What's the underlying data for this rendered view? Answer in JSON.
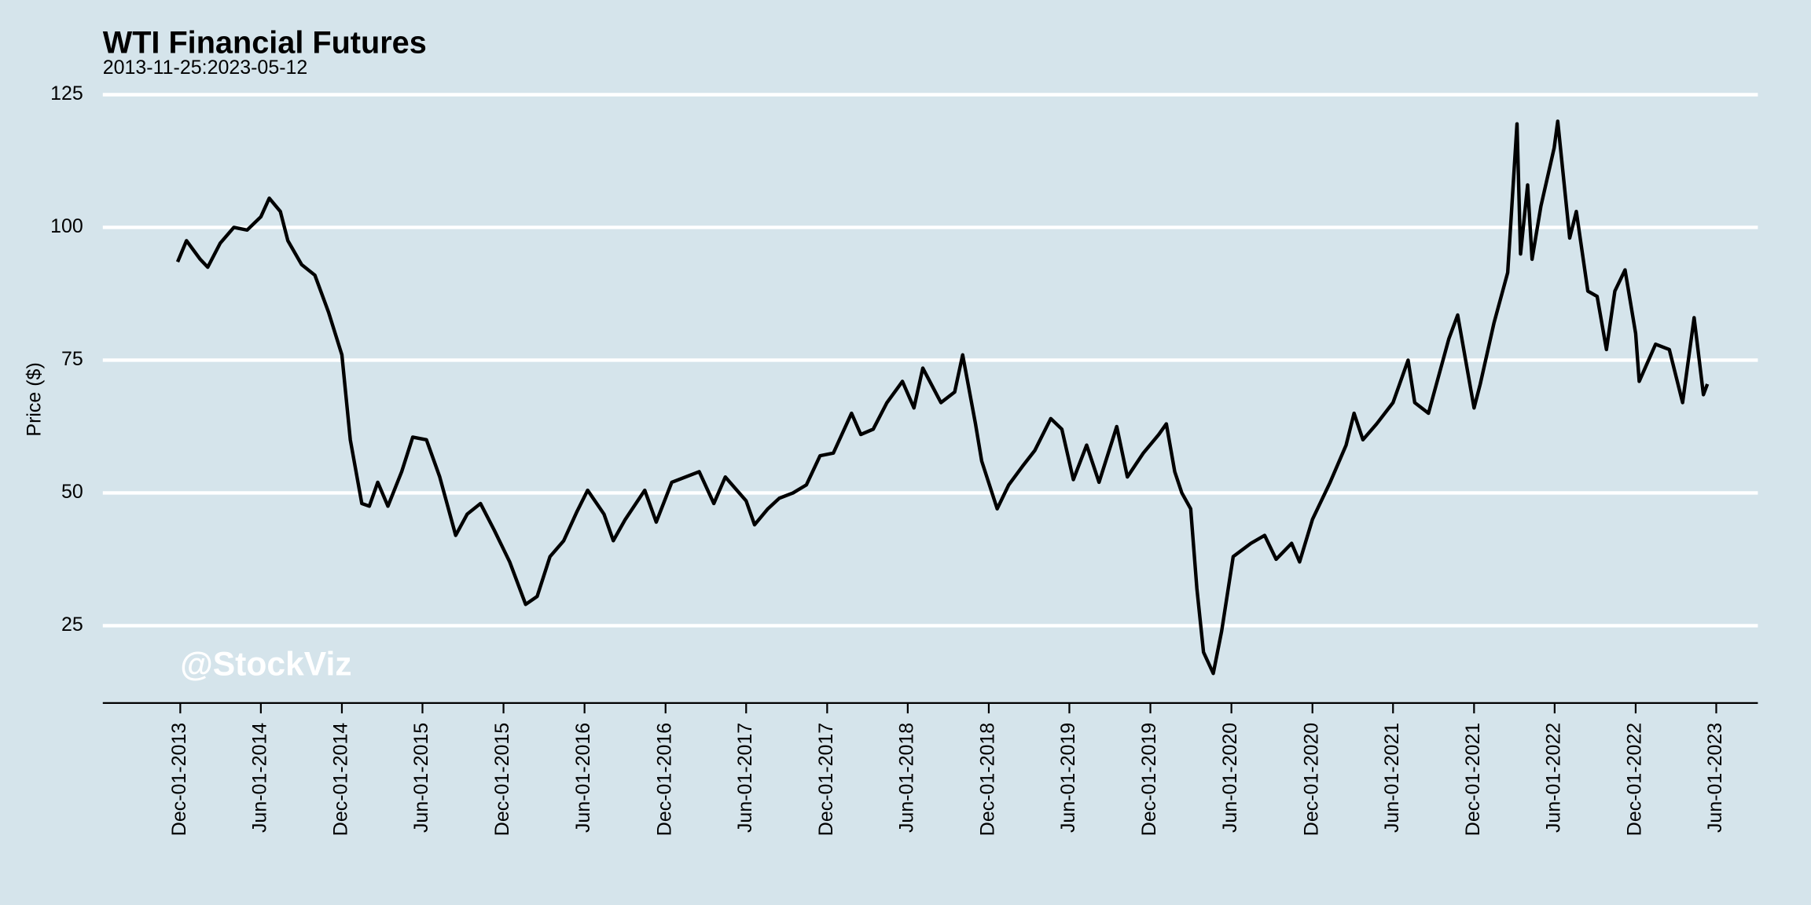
{
  "chart_data": {
    "type": "line",
    "title": "WTI Financial Futures",
    "subtitle": "2013-11-25:2023-05-12",
    "y_label": "Price ($)",
    "watermark": "@StockViz",
    "x": [
      "2013-11-25",
      "2013-12-15",
      "2014-01-15",
      "2014-02-01",
      "2014-03-01",
      "2014-04-01",
      "2014-05-01",
      "2014-06-01",
      "2014-06-20",
      "2014-07-15",
      "2014-08-01",
      "2014-09-01",
      "2014-10-01",
      "2014-11-01",
      "2014-12-01",
      "2014-12-20",
      "2015-01-15",
      "2015-02-01",
      "2015-02-20",
      "2015-03-15",
      "2015-04-15",
      "2015-05-10",
      "2015-06-10",
      "2015-07-10",
      "2015-08-15",
      "2015-09-10",
      "2015-10-10",
      "2015-11-10",
      "2015-12-15",
      "2016-01-20",
      "2016-02-15",
      "2016-03-15",
      "2016-04-15",
      "2016-05-15",
      "2016-06-08",
      "2016-07-15",
      "2016-08-05",
      "2016-09-01",
      "2016-10-15",
      "2016-11-10",
      "2016-12-15",
      "2017-01-15",
      "2017-02-15",
      "2017-03-20",
      "2017-04-15",
      "2017-06-01",
      "2017-06-20",
      "2017-07-20",
      "2017-08-15",
      "2017-09-15",
      "2017-10-15",
      "2017-11-15",
      "2017-12-15",
      "2018-01-25",
      "2018-02-15",
      "2018-03-15",
      "2018-04-15",
      "2018-05-20",
      "2018-06-15",
      "2018-07-05",
      "2018-08-15",
      "2018-09-15",
      "2018-10-03",
      "2018-11-01",
      "2018-11-15",
      "2018-12-20",
      "2019-01-15",
      "2019-02-15",
      "2019-03-15",
      "2019-04-20",
      "2019-05-15",
      "2019-06-10",
      "2019-07-10",
      "2019-08-07",
      "2019-09-16",
      "2019-10-10",
      "2019-11-15",
      "2019-12-20",
      "2020-01-06",
      "2020-01-25",
      "2020-02-10",
      "2020-03-01",
      "2020-03-15",
      "2020-03-30",
      "2020-04-21",
      "2020-05-10",
      "2020-06-05",
      "2020-07-15",
      "2020-08-15",
      "2020-09-10",
      "2020-10-15",
      "2020-11-02",
      "2020-12-01",
      "2021-01-10",
      "2021-02-15",
      "2021-03-05",
      "2021-03-25",
      "2021-04-25",
      "2021-06-01",
      "2021-07-05",
      "2021-07-20",
      "2021-08-20",
      "2021-10-05",
      "2021-10-25",
      "2021-12-01",
      "2021-12-15",
      "2022-01-15",
      "2022-02-15",
      "2022-03-08",
      "2022-03-16",
      "2022-04-01",
      "2022-04-11",
      "2022-05-01",
      "2022-05-31",
      "2022-06-08",
      "2022-07-05",
      "2022-07-20",
      "2022-08-15",
      "2022-09-05",
      "2022-09-26",
      "2022-10-15",
      "2022-11-07",
      "2022-12-01",
      "2022-12-09",
      "2023-01-15",
      "2023-02-15",
      "2023-03-17",
      "2023-04-12",
      "2023-05-03",
      "2023-05-12"
    ],
    "series": [
      {
        "name": "WTI",
        "color": "#000000",
        "values": [
          93.5,
          97.5,
          94,
          92.5,
          97,
          100,
          99.5,
          102,
          105.5,
          103,
          97.5,
          93,
          91,
          84,
          76,
          60,
          48,
          47.5,
          52,
          47.5,
          54,
          60.5,
          60,
          53,
          42,
          46,
          48,
          43,
          37,
          29,
          30.5,
          38,
          41,
          46.5,
          50.5,
          46,
          41,
          45,
          50.5,
          44.5,
          52,
          53,
          54,
          48,
          53,
          48.5,
          44,
          47,
          49,
          50,
          51.5,
          57,
          57.5,
          65,
          61,
          62,
          67,
          71,
          66,
          73.5,
          67,
          69,
          76,
          63,
          56,
          47,
          51.5,
          55,
          58,
          64,
          62,
          52.5,
          59,
          52,
          62.5,
          53,
          57.5,
          61,
          63,
          54,
          50,
          47,
          32,
          20,
          16,
          24,
          38,
          40.5,
          42,
          37.5,
          40.5,
          37,
          45,
          52,
          59,
          65,
          60,
          63,
          67,
          75,
          67,
          65,
          79,
          83.5,
          66,
          70.5,
          82,
          91.5,
          119.5,
          95,
          108,
          94,
          104,
          115,
          120,
          98,
          103,
          88,
          87,
          77,
          88,
          92,
          80,
          71,
          78,
          77,
          67,
          83,
          68.5,
          70.5
        ]
      }
    ],
    "xlim": [
      "2013-06-09",
      "2023-09-03"
    ],
    "xticks": [
      {
        "value": "2013-12-01",
        "label": "Dec-01-2013"
      },
      {
        "value": "2014-06-01",
        "label": "Jun-01-2014"
      },
      {
        "value": "2014-12-01",
        "label": "Dec-01-2014"
      },
      {
        "value": "2015-06-01",
        "label": "Jun-01-2015"
      },
      {
        "value": "2015-12-01",
        "label": "Dec-01-2015"
      },
      {
        "value": "2016-06-01",
        "label": "Jun-01-2016"
      },
      {
        "value": "2016-12-01",
        "label": "Dec-01-2016"
      },
      {
        "value": "2017-06-01",
        "label": "Jun-01-2017"
      },
      {
        "value": "2017-12-01",
        "label": "Dec-01-2017"
      },
      {
        "value": "2018-06-01",
        "label": "Jun-01-2018"
      },
      {
        "value": "2018-12-01",
        "label": "Dec-01-2018"
      },
      {
        "value": "2019-06-01",
        "label": "Jun-01-2019"
      },
      {
        "value": "2019-12-01",
        "label": "Dec-01-2019"
      },
      {
        "value": "2020-06-01",
        "label": "Jun-01-2020"
      },
      {
        "value": "2020-12-01",
        "label": "Dec-01-2020"
      },
      {
        "value": "2021-06-01",
        "label": "Jun-01-2021"
      },
      {
        "value": "2021-12-01",
        "label": "Dec-01-2021"
      },
      {
        "value": "2022-06-01",
        "label": "Jun-01-2022"
      },
      {
        "value": "2022-12-01",
        "label": "Dec-01-2022"
      },
      {
        "value": "2023-06-01",
        "label": "Jun-01-2023"
      }
    ],
    "ylim": [
      10,
      125
    ],
    "yticks": [
      25,
      50,
      75,
      100,
      125
    ],
    "grid": true
  }
}
